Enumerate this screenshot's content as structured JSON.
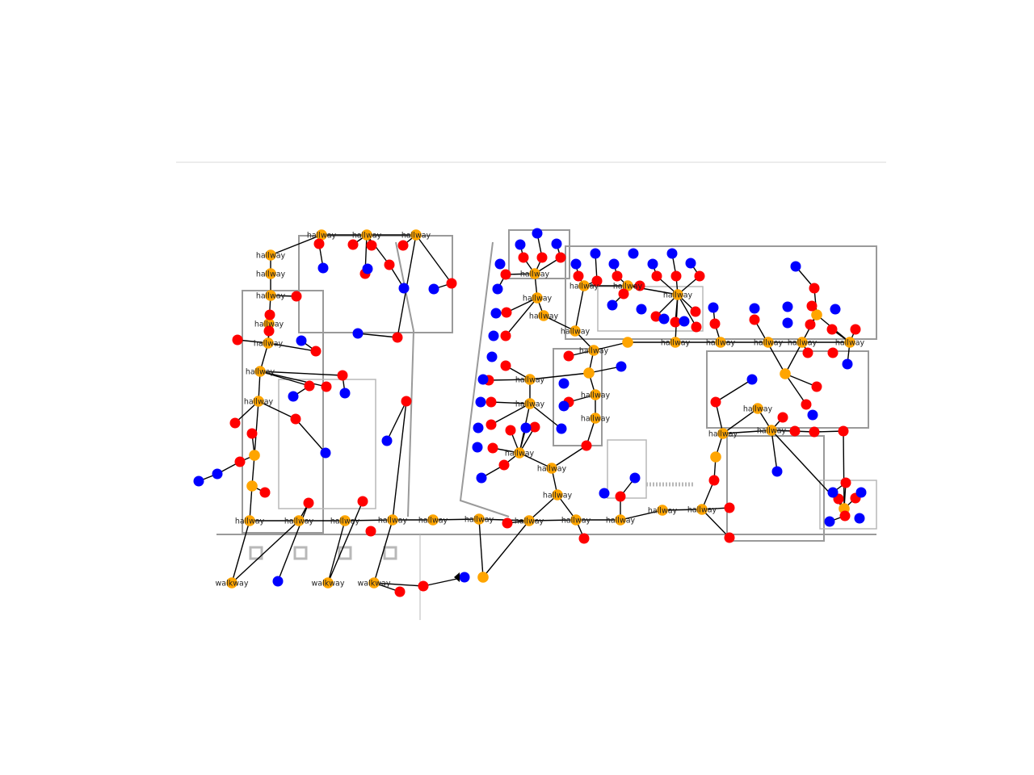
{
  "colors": {
    "hallway_node": "#FFA500",
    "room_node": "#FF0000",
    "door_node": "#0000FF",
    "edge": "#000000",
    "wall": "#9a9a9a"
  },
  "legend_types": [
    "hallway",
    "walkway"
  ],
  "node_label_text": {
    "hallway": "hallway",
    "walkway": "walkway"
  }
}
